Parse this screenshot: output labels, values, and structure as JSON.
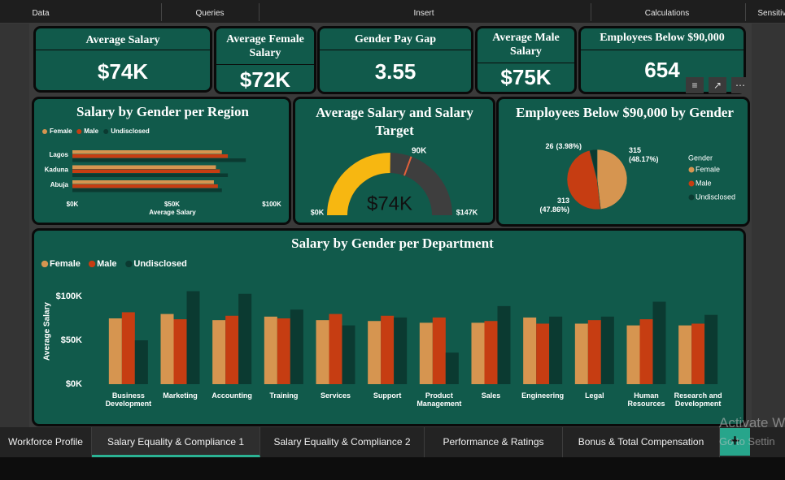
{
  "ribbon": {
    "groups": [
      "Data",
      "Queries",
      "Insert",
      "Calculations",
      "Sensitivi"
    ]
  },
  "kpis": [
    {
      "title": "Average Salary",
      "value": "$74K"
    },
    {
      "title": "Average Female Salary",
      "value": "$72K"
    },
    {
      "title": "Gender Pay Gap",
      "value": "3.55"
    },
    {
      "title": "Average Male Salary",
      "value": "$75K"
    },
    {
      "title": "Employees Below $90,000",
      "value": "654"
    }
  ],
  "chart_data": [
    {
      "type": "hbar",
      "title": "Salary by Gender per Region",
      "categories": [
        "Lagos",
        "Kaduna",
        "Abuja"
      ],
      "series": [
        {
          "name": "Female",
          "color": "#d69550",
          "values": [
            75,
            72,
            71
          ]
        },
        {
          "name": "Male",
          "color": "#c63d12",
          "values": [
            78,
            74,
            73
          ]
        },
        {
          "name": "Undisclosed",
          "color": "#0b3a31",
          "values": [
            87,
            78,
            75
          ]
        }
      ],
      "xlabel": "Average Salary",
      "xlim": [
        0,
        100
      ],
      "xticks": [
        {
          "value": 0,
          "label": "$0K"
        },
        {
          "value": 50,
          "label": "$50K"
        },
        {
          "value": 100,
          "label": "$100K"
        }
      ],
      "legend": "top-left"
    },
    {
      "type": "gauge",
      "title": "Average Salary and Salary Target",
      "value": 74,
      "value_label": "$74K",
      "min": {
        "value": 0,
        "label": "$0K"
      },
      "max": {
        "value": 147,
        "label": "$147K"
      },
      "target": {
        "value": 90,
        "label": "90K"
      },
      "color": "#f7b711",
      "track_color": "#3e3e3e",
      "target_color": "#e2613b"
    },
    {
      "type": "pie",
      "title": "Employees Below $90,000 by Gender",
      "legend_title": "Gender",
      "categories": [
        "Female",
        "Male",
        "Undisclosed"
      ],
      "values": [
        315,
        313,
        26
      ],
      "percent_labels": [
        "(48.17%)",
        "(47.86%)",
        "(3.98%)"
      ],
      "colors": [
        "#d69550",
        "#c63d12",
        "#0b3a31"
      ]
    },
    {
      "type": "bar",
      "title": "Salary by Gender per Department",
      "categories": [
        "Business Development",
        "Marketing",
        "Accounting",
        "Training",
        "Services",
        "Support",
        "Product Management",
        "Sales",
        "Engineering",
        "Legal",
        "Human Resources",
        "Research and Development"
      ],
      "series": [
        {
          "name": "Female",
          "color": "#d69550",
          "values": [
            75,
            80,
            73,
            77,
            73,
            72,
            70,
            70,
            76,
            69,
            67,
            67
          ]
        },
        {
          "name": "Male",
          "color": "#c63d12",
          "values": [
            82,
            74,
            78,
            75,
            80,
            78,
            76,
            72,
            69,
            73,
            74,
            69
          ]
        },
        {
          "name": "Undisclosed",
          "color": "#0b3a31",
          "values": [
            50,
            106,
            103,
            85,
            67,
            76,
            36,
            89,
            77,
            77,
            94,
            79
          ]
        }
      ],
      "ylabel": "Average Salary",
      "ylim": [
        0,
        110
      ],
      "yticks": [
        {
          "value": 0,
          "label": "$0K"
        },
        {
          "value": 50,
          "label": "$50K"
        },
        {
          "value": 100,
          "label": "$100K"
        }
      ],
      "legend": "top-left"
    }
  ],
  "tabs": [
    "Workforce Profile",
    "Salary Equality & Compliance 1",
    "Salary Equality & Compliance 2",
    "Performance & Ratings",
    "Bonus & Total Compensation"
  ],
  "active_tab": 1,
  "watermark": [
    "Activate W",
    "Go to Settin"
  ]
}
